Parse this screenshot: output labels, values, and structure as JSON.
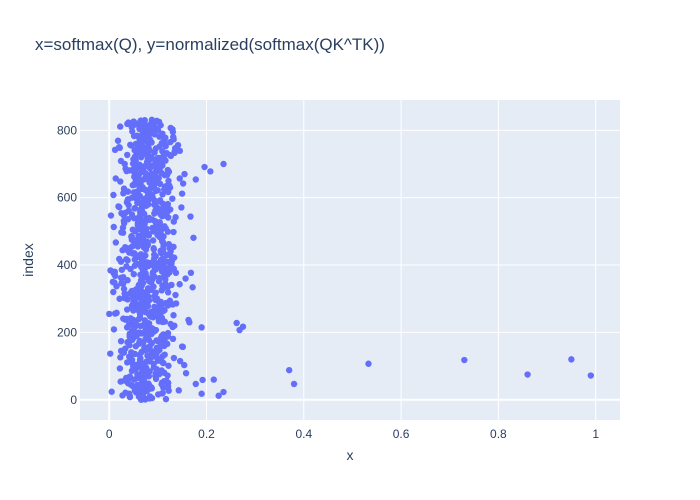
{
  "chart_data": {
    "type": "scatter",
    "title": "x=softmax(Q), y=normalized(softmax(QK^TK))",
    "xlabel": "x",
    "ylabel": "index",
    "xlim": [
      -0.06,
      1.05
    ],
    "ylim": [
      -60,
      890
    ],
    "xticks": [
      0,
      0.2,
      0.4,
      0.6,
      0.8,
      1
    ],
    "xtick_labels": [
      "0",
      "0.2",
      "0.4",
      "0.6",
      "0.8",
      "1"
    ],
    "yticks": [
      0,
      200,
      400,
      600,
      800
    ],
    "ytick_labels": [
      "0",
      "200",
      "400",
      "600",
      "800"
    ],
    "grid": true,
    "colors": {
      "marker": "#636efa",
      "plot_bg": "#e5ecf6",
      "grid": "#ffffff",
      "text": "#2a3f5f"
    },
    "bulk_distribution": {
      "count": 832,
      "index_range": [
        0,
        831
      ],
      "x_center": 0.075,
      "x_spread": 0.03,
      "x_min": 0
    },
    "outliers": [
      {
        "x": 0.99,
        "y": 72
      },
      {
        "x": 0.95,
        "y": 120
      },
      {
        "x": 0.86,
        "y": 75
      },
      {
        "x": 0.73,
        "y": 118
      },
      {
        "x": 0.533,
        "y": 107
      },
      {
        "x": 0.38,
        "y": 47
      },
      {
        "x": 0.37,
        "y": 88
      },
      {
        "x": 0.275,
        "y": 217
      },
      {
        "x": 0.268,
        "y": 207
      },
      {
        "x": 0.262,
        "y": 228
      },
      {
        "x": 0.235,
        "y": 23
      },
      {
        "x": 0.225,
        "y": 12
      },
      {
        "x": 0.215,
        "y": 60
      },
      {
        "x": 0.235,
        "y": 700
      },
      {
        "x": 0.208,
        "y": 678
      },
      {
        "x": 0.196,
        "y": 691
      },
      {
        "x": 0.178,
        "y": 654
      },
      {
        "x": 0.19,
        "y": 215
      },
      {
        "x": 0.192,
        "y": 59
      },
      {
        "x": 0.19,
        "y": 18
      },
      {
        "x": 0.178,
        "y": 47
      },
      {
        "x": 0.168,
        "y": 377
      },
      {
        "x": 0.157,
        "y": 360
      },
      {
        "x": 0.152,
        "y": 642
      },
      {
        "x": 0.145,
        "y": 657
      },
      {
        "x": 0.163,
        "y": 237
      },
      {
        "x": 0.158,
        "y": 79
      },
      {
        "x": 0.15,
        "y": 158
      },
      {
        "x": 0.143,
        "y": 28
      }
    ]
  }
}
